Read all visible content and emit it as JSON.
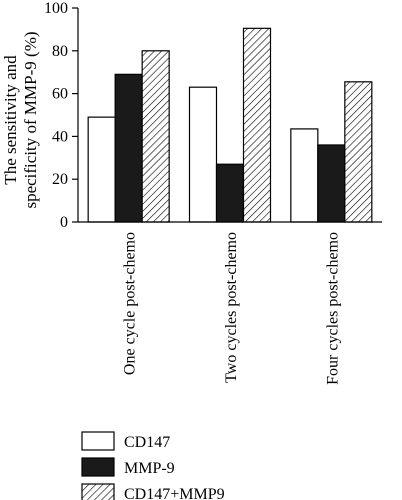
{
  "chart_data": {
    "type": "bar",
    "title": "",
    "ylabel": [
      "The sensitivity and",
      "specificity of MMP-9 (%)"
    ],
    "xlabel": "",
    "ylim": [
      0,
      100
    ],
    "yticks": [
      0,
      20,
      40,
      60,
      80,
      100
    ],
    "categories": [
      "One cycle post-chemo",
      "Two cycles post-chemo",
      "Four cycles post-chemo"
    ],
    "series": [
      {
        "name": "CD147",
        "values": [
          49,
          63,
          43.5
        ],
        "fill": "#ffffff",
        "pattern": "none"
      },
      {
        "name": "MMP-9",
        "values": [
          69,
          27,
          36
        ],
        "fill": "#1a1a1a",
        "pattern": "none"
      },
      {
        "name": "CD147+MMP9",
        "values": [
          80,
          90.5,
          65.5
        ],
        "fill": "#ffffff",
        "pattern": "diagonal-hatch"
      }
    ],
    "grid": false,
    "legend_position": "bottom"
  }
}
